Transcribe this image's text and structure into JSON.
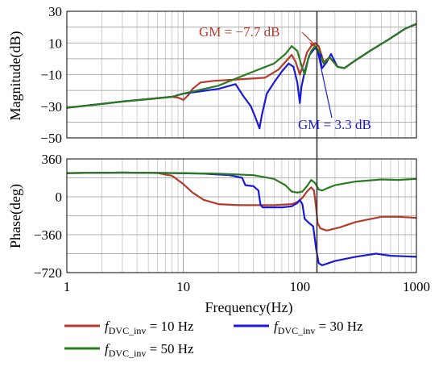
{
  "chart_data": [
    {
      "type": "line",
      "panel": "magnitude",
      "ylabel": "Magnitude(dB)",
      "xlabel": "",
      "xscale": "log",
      "xlim": [
        1,
        1000
      ],
      "ylim": [
        -50,
        30
      ],
      "yticks": [
        "30",
        "10",
        "-10",
        "-30",
        "-50"
      ],
      "grid": true,
      "series": [
        {
          "color": "#b53a2a",
          "values": [
            [
              1,
              -31
            ],
            [
              3,
              -27
            ],
            [
              6,
              -25
            ],
            [
              8,
              -24
            ],
            [
              9,
              -24.5
            ],
            [
              10,
              -26
            ],
            [
              11,
              -23
            ],
            [
              12,
              -19
            ],
            [
              14,
              -15
            ],
            [
              18,
              -14
            ],
            [
              30,
              -13
            ],
            [
              50,
              -12
            ],
            [
              65,
              -7
            ],
            [
              75,
              -2
            ],
            [
              85,
              2.5
            ],
            [
              92,
              -2
            ],
            [
              100,
              -10
            ],
            [
              108,
              -3
            ],
            [
              115,
              4
            ],
            [
              125,
              8
            ],
            [
              135,
              10
            ],
            [
              145,
              8
            ],
            [
              160,
              -2
            ],
            [
              180,
              1
            ],
            [
              210,
              -5
            ],
            [
              240,
              -6
            ],
            [
              300,
              -1
            ],
            [
              400,
              5
            ],
            [
              600,
              13
            ],
            [
              800,
              19
            ],
            [
              1000,
              22
            ]
          ]
        },
        {
          "color": "#1a1adb",
          "values": [
            [
              1,
              -31
            ],
            [
              3,
              -27
            ],
            [
              8,
              -24
            ],
            [
              10,
              -22
            ],
            [
              20,
              -19
            ],
            [
              28,
              -16
            ],
            [
              33,
              -24
            ],
            [
              38,
              -30
            ],
            [
              42,
              -38
            ],
            [
              45,
              -44
            ],
            [
              47,
              -36
            ],
            [
              52,
              -22
            ],
            [
              60,
              -15
            ],
            [
              70,
              -8
            ],
            [
              80,
              -3
            ],
            [
              88,
              -5
            ],
            [
              95,
              -15
            ],
            [
              100,
              -28
            ],
            [
              103,
              -18
            ],
            [
              110,
              -8
            ],
            [
              120,
              2
            ],
            [
              135,
              7
            ],
            [
              145,
              4
            ],
            [
              155,
              -6
            ],
            [
              170,
              -2
            ],
            [
              185,
              3
            ],
            [
              210,
              -5
            ],
            [
              240,
              -6
            ],
            [
              300,
              -1
            ],
            [
              400,
              5
            ],
            [
              600,
              13
            ],
            [
              800,
              19
            ],
            [
              1000,
              22
            ]
          ]
        },
        {
          "color": "#2a7a1f",
          "values": [
            [
              1,
              -31
            ],
            [
              3,
              -27
            ],
            [
              8,
              -24
            ],
            [
              10,
              -22
            ],
            [
              20,
              -17
            ],
            [
              40,
              -8
            ],
            [
              60,
              -3
            ],
            [
              75,
              3
            ],
            [
              85,
              8
            ],
            [
              95,
              5
            ],
            [
              103,
              -4
            ],
            [
              110,
              -10
            ],
            [
              118,
              0
            ],
            [
              125,
              5
            ],
            [
              135,
              8
            ],
            [
              145,
              5
            ],
            [
              160,
              -3
            ],
            [
              180,
              1
            ],
            [
              210,
              -5
            ],
            [
              240,
              -6
            ],
            [
              300,
              -1
            ],
            [
              400,
              5
            ],
            [
              600,
              13
            ],
            [
              800,
              19
            ],
            [
              1000,
              22
            ]
          ]
        }
      ],
      "annotations": [
        {
          "text": "GM = −7.7 dB",
          "color": "#b53a2a"
        },
        {
          "text": "GM =   3.3 dB",
          "color": "#1a1adb"
        }
      ]
    },
    {
      "type": "line",
      "panel": "phase",
      "ylabel": "Phase(deg)",
      "xlabel": "Frequency(Hz)",
      "xscale": "log",
      "xlim": [
        1,
        1000
      ],
      "ylim": [
        -720,
        360
      ],
      "yticks": [
        "360",
        "0",
        "-360",
        "-720"
      ],
      "xticks": [
        "1",
        "10",
        "100",
        "1000"
      ],
      "grid": true,
      "series": [
        {
          "color": "#b53a2a",
          "values": [
            [
              1,
              225
            ],
            [
              3,
              230
            ],
            [
              6,
              226
            ],
            [
              8,
              200
            ],
            [
              10,
              120
            ],
            [
              12,
              40
            ],
            [
              15,
              -30
            ],
            [
              20,
              -70
            ],
            [
              30,
              -80
            ],
            [
              60,
              -80
            ],
            [
              85,
              -70
            ],
            [
              95,
              -50
            ],
            [
              105,
              -10
            ],
            [
              115,
              50
            ],
            [
              125,
              90
            ],
            [
              132,
              60
            ],
            [
              137,
              -80
            ],
            [
              142,
              -250
            ],
            [
              150,
              -300
            ],
            [
              170,
              -320
            ],
            [
              220,
              -290
            ],
            [
              300,
              -240
            ],
            [
              500,
              -190
            ],
            [
              700,
              -190
            ],
            [
              1000,
              -200
            ]
          ]
        },
        {
          "color": "#1a1adb",
          "values": [
            [
              1,
              225
            ],
            [
              3,
              230
            ],
            [
              8,
              225
            ],
            [
              15,
              220
            ],
            [
              25,
              205
            ],
            [
              32,
              180
            ],
            [
              34,
              110
            ],
            [
              40,
              100
            ],
            [
              44,
              60
            ],
            [
              46,
              -80
            ],
            [
              48,
              -100
            ],
            [
              55,
              -100
            ],
            [
              70,
              -100
            ],
            [
              85,
              -90
            ],
            [
              95,
              -60
            ],
            [
              100,
              -30
            ],
            [
              105,
              -70
            ],
            [
              110,
              -210
            ],
            [
              120,
              -250
            ],
            [
              130,
              -280
            ],
            [
              138,
              -500
            ],
            [
              145,
              -630
            ],
            [
              155,
              -650
            ],
            [
              200,
              -610
            ],
            [
              300,
              -570
            ],
            [
              450,
              -540
            ],
            [
              600,
              -560
            ],
            [
              1000,
              -570
            ]
          ]
        },
        {
          "color": "#2a7a1f",
          "values": [
            [
              1,
              225
            ],
            [
              3,
              230
            ],
            [
              10,
              225
            ],
            [
              20,
              220
            ],
            [
              40,
              205
            ],
            [
              60,
              170
            ],
            [
              75,
              110
            ],
            [
              85,
              50
            ],
            [
              95,
              40
            ],
            [
              105,
              50
            ],
            [
              115,
              100
            ],
            [
              125,
              160
            ],
            [
              135,
              130
            ],
            [
              145,
              70
            ],
            [
              155,
              60
            ],
            [
              170,
              80
            ],
            [
              200,
              110
            ],
            [
              300,
              145
            ],
            [
              500,
              165
            ],
            [
              700,
              160
            ],
            [
              1000,
              170
            ]
          ]
        }
      ]
    }
  ],
  "legend": [
    {
      "label_italic": "f",
      "label_sub": "DVC_inv",
      "label_rest": " = 10 Hz",
      "color": "#b53a2a"
    },
    {
      "label_italic": "f",
      "label_sub": "DVC_inv",
      "label_rest": " = 30 Hz",
      "color": "#1a1adb"
    },
    {
      "label_italic": "f",
      "label_sub": "DVC_inv",
      "label_rest": " = 50 Hz",
      "color": "#2a7a1f"
    }
  ],
  "crossover_frequency": 140
}
